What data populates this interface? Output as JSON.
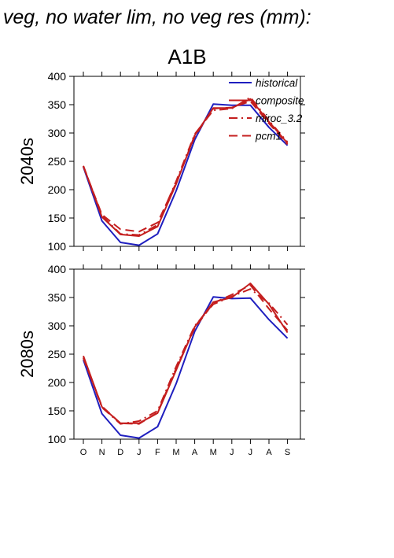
{
  "header": {
    "title": "f veg, no water lim, no veg res (mm):"
  },
  "chart_data": {
    "type": "line",
    "scenario": "A1B",
    "x": [
      "O",
      "N",
      "D",
      "J",
      "F",
      "M",
      "A",
      "M",
      "J",
      "J",
      "A",
      "S"
    ],
    "ylim": [
      100,
      400
    ],
    "yticks": [
      100,
      150,
      200,
      250,
      300,
      350,
      400
    ],
    "grid": false,
    "legend_position": "top-right",
    "legend": [
      {
        "name": "historical",
        "color": "#1f1fbf",
        "dash": "solid"
      },
      {
        "name": "composite",
        "color": "#c41e1e",
        "dash": "solid"
      },
      {
        "name": "miroc_3.2",
        "color": "#c41e1e",
        "dash": "dashdot"
      },
      {
        "name": "pcm1",
        "color": "#c41e1e",
        "dash": "dashed"
      }
    ],
    "panels": [
      {
        "label": "2040s",
        "series": [
          {
            "name": "historical",
            "values": [
              240,
              145,
              107,
              102,
              122,
              198,
              288,
              351,
              349,
              349,
              310,
              278
            ]
          },
          {
            "name": "composite",
            "values": [
              242,
              152,
              121,
              118,
              135,
              210,
              296,
              344,
              344,
              360,
              320,
              282
            ]
          },
          {
            "name": "miroc_3.2",
            "values": [
              242,
              154,
              122,
              120,
              138,
              215,
              298,
              340,
              343,
              363,
              322,
              284
            ]
          },
          {
            "name": "pcm1",
            "values": [
              241,
              156,
              130,
              126,
              142,
              212,
              294,
              343,
              345,
              356,
              317,
              280
            ]
          }
        ]
      },
      {
        "label": "2080s",
        "series": [
          {
            "name": "historical",
            "values": [
              240,
              145,
              107,
              102,
              122,
              198,
              290,
              351,
              348,
              349,
              311,
              278
            ]
          },
          {
            "name": "composite",
            "values": [
              247,
              157,
              128,
              128,
              146,
              222,
              298,
              342,
              350,
              375,
              338,
              288
            ]
          },
          {
            "name": "miroc_3.2",
            "values": [
              244,
              156,
              127,
              132,
              150,
              228,
              300,
              338,
              352,
              365,
              340,
              302
            ]
          },
          {
            "name": "pcm1",
            "values": [
              243,
              158,
              128,
              127,
              147,
              225,
              296,
              340,
              355,
              372,
              330,
              292
            ]
          }
        ]
      }
    ]
  }
}
